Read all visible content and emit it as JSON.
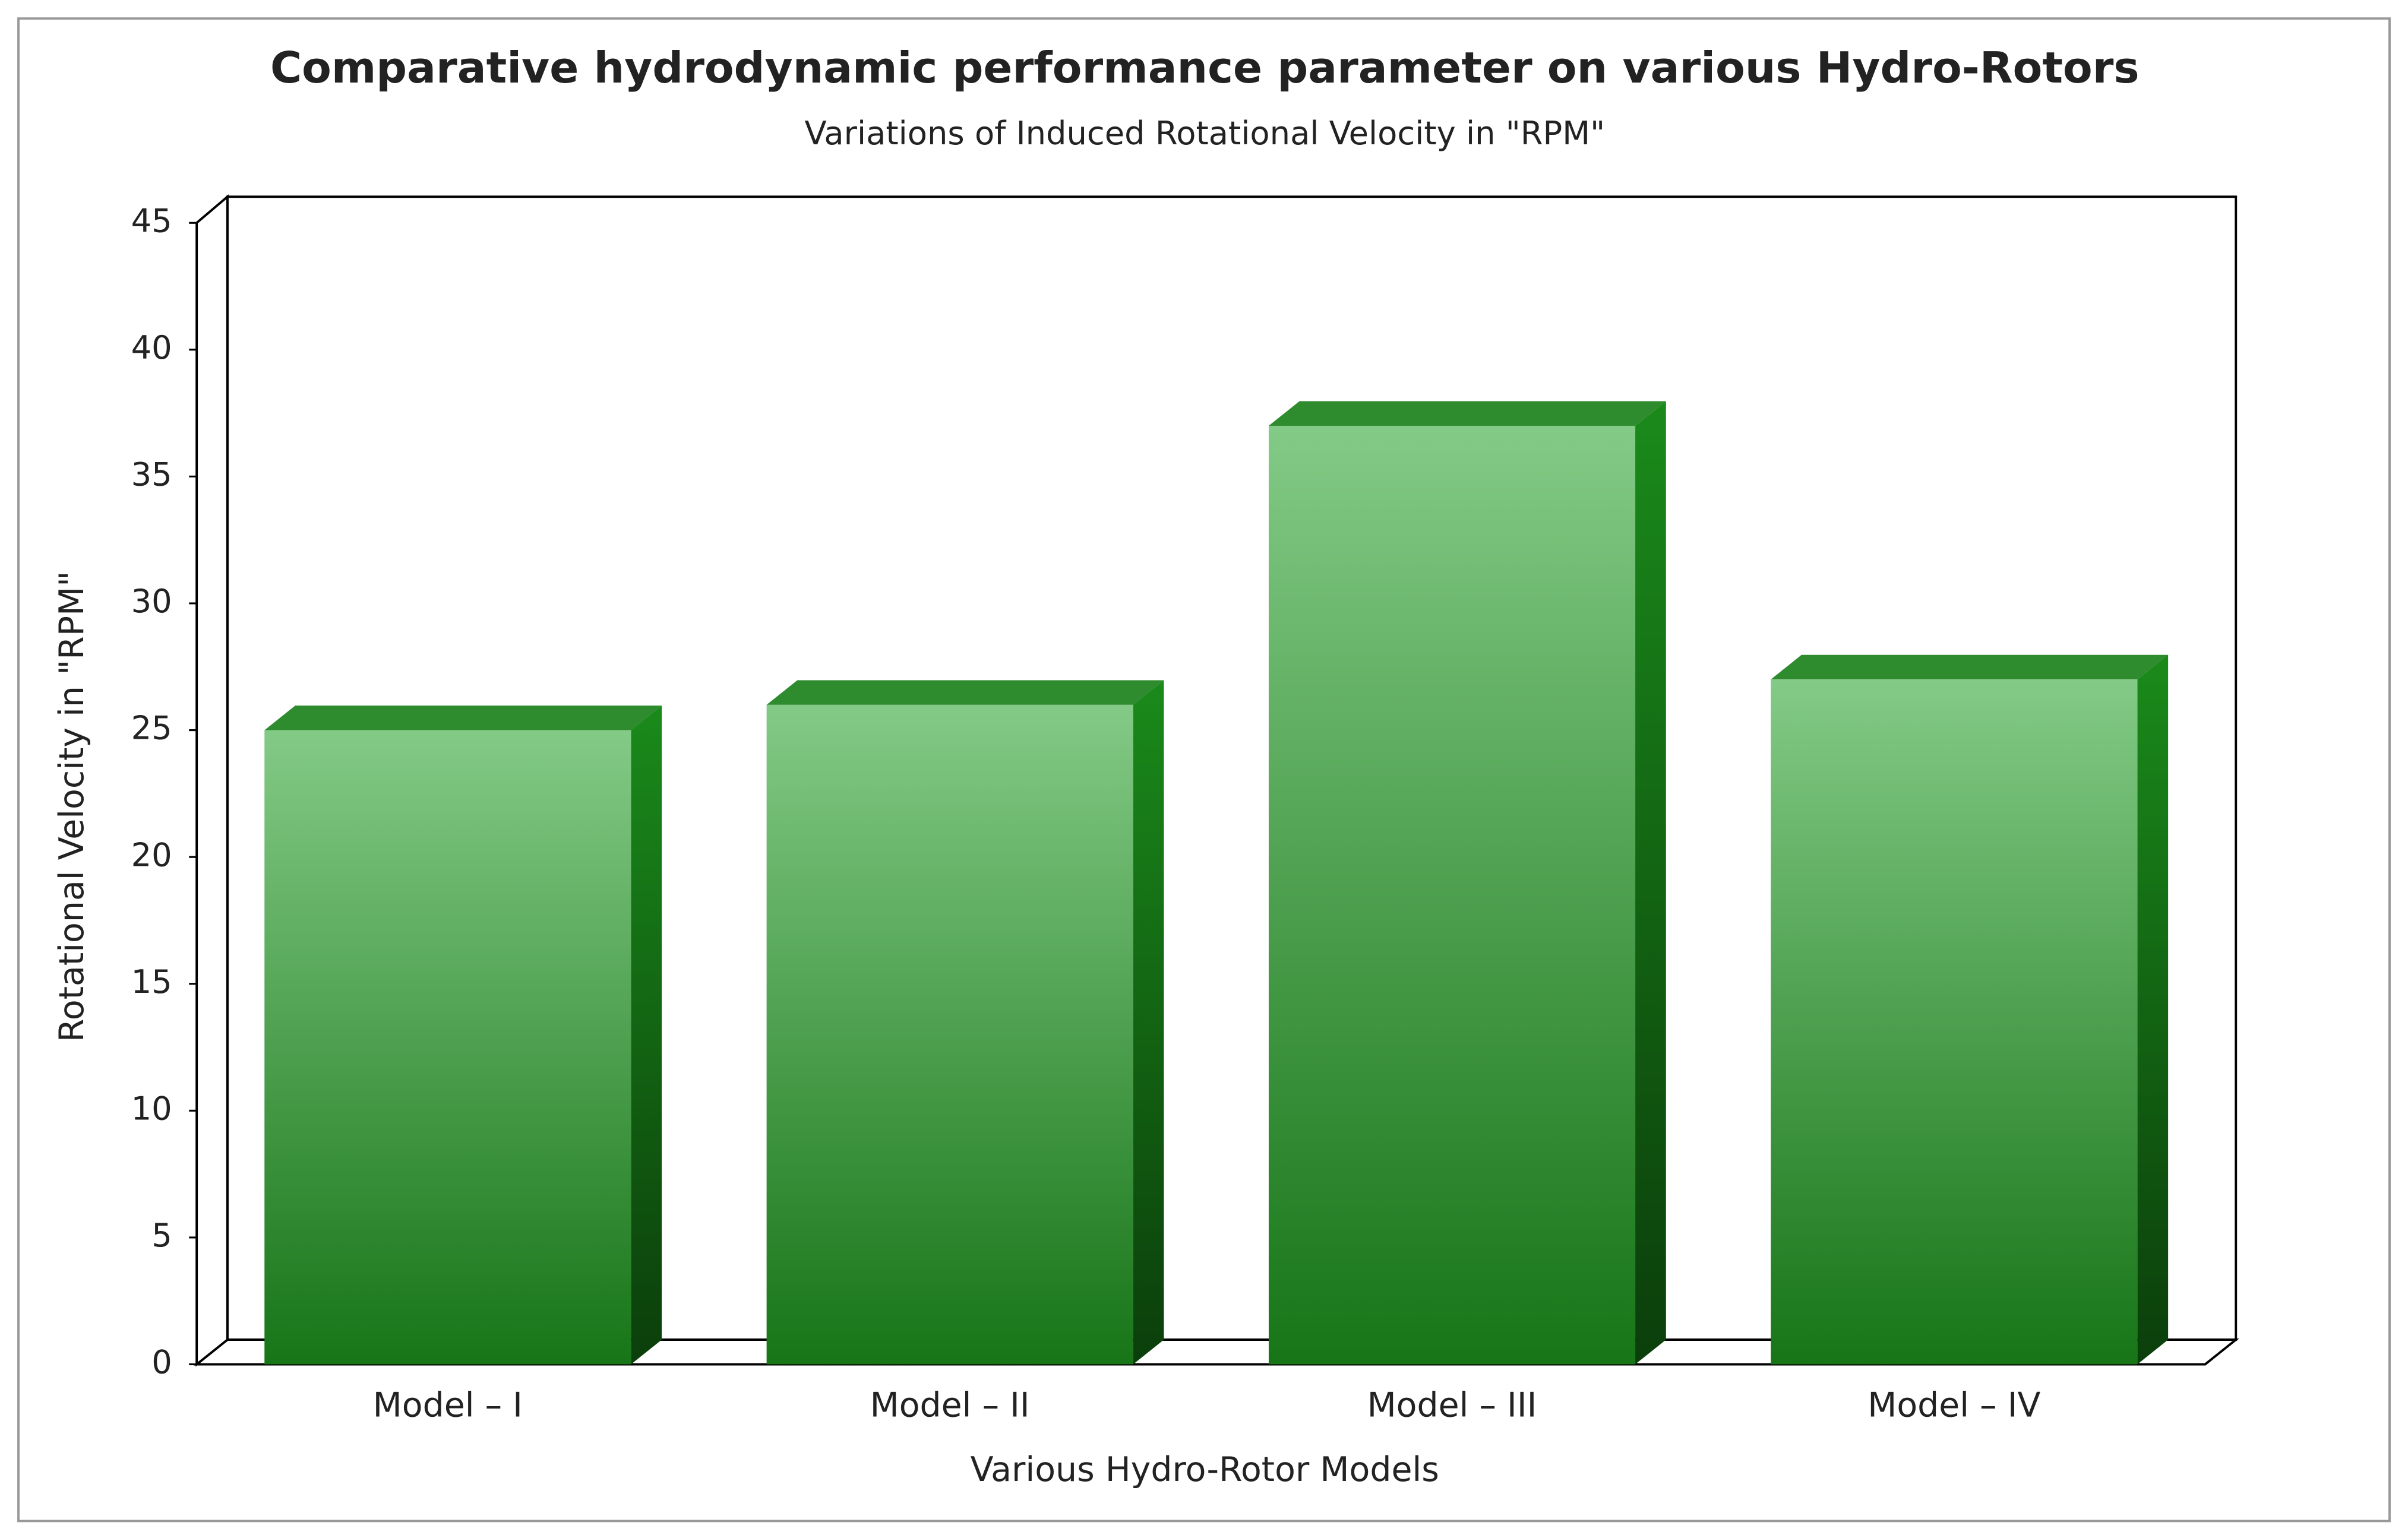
{
  "chart_data": {
    "type": "bar3d",
    "title": "Comparative hydrodynamic performance parameter on various Hydro-Rotors",
    "subtitle": "Variations of Induced Rotational Velocity in \"RPM\"",
    "x_label": "Various Hydro-Rotor Models",
    "y_label": "Rotational Velocity in \"RPM\"",
    "categories": [
      "Model – I",
      "Model – II",
      "Model – III",
      "Model – IV"
    ],
    "values": [
      25,
      26,
      37,
      27
    ],
    "color": "#2e8b2e",
    "ylim": [
      0,
      45
    ],
    "yticks": [
      0,
      5,
      10,
      15,
      20,
      25,
      30,
      35,
      40,
      45
    ],
    "grid": false
  }
}
